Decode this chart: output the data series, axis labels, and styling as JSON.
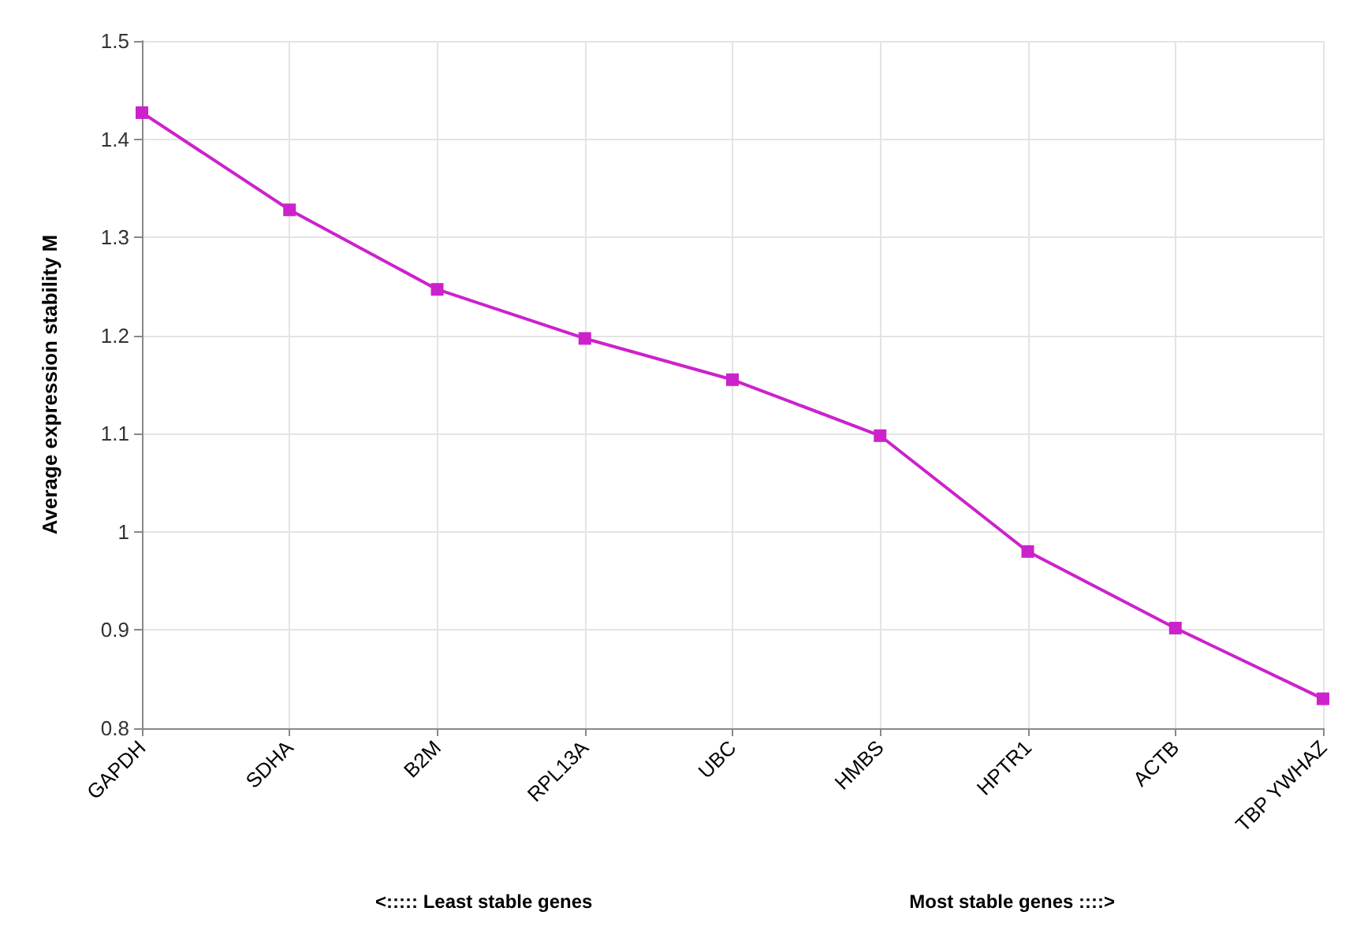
{
  "chart_data": {
    "type": "line",
    "ylabel": "Average expression stability M",
    "categories": [
      "GAPDH",
      "SDHA",
      "B2M",
      "RPL13A",
      "UBC",
      "HMBS",
      "HPTR1",
      "ACTB",
      "TBP YWHAZ"
    ],
    "series": [
      {
        "color": "#cc22cc",
        "values": [
          1.427,
          1.328,
          1.247,
          1.197,
          1.155,
          1.098,
          0.98,
          0.902,
          0.83
        ]
      }
    ],
    "ylim": [
      0.8,
      1.5
    ],
    "yticks": [
      0.8,
      0.9,
      1,
      1.1,
      1.2,
      1.3,
      1.4,
      1.5
    ],
    "grid": true,
    "marker": "square",
    "line_style": "solid",
    "annotations": [
      "<::::: Least stable genes",
      "Most stable genes ::::>"
    ]
  }
}
